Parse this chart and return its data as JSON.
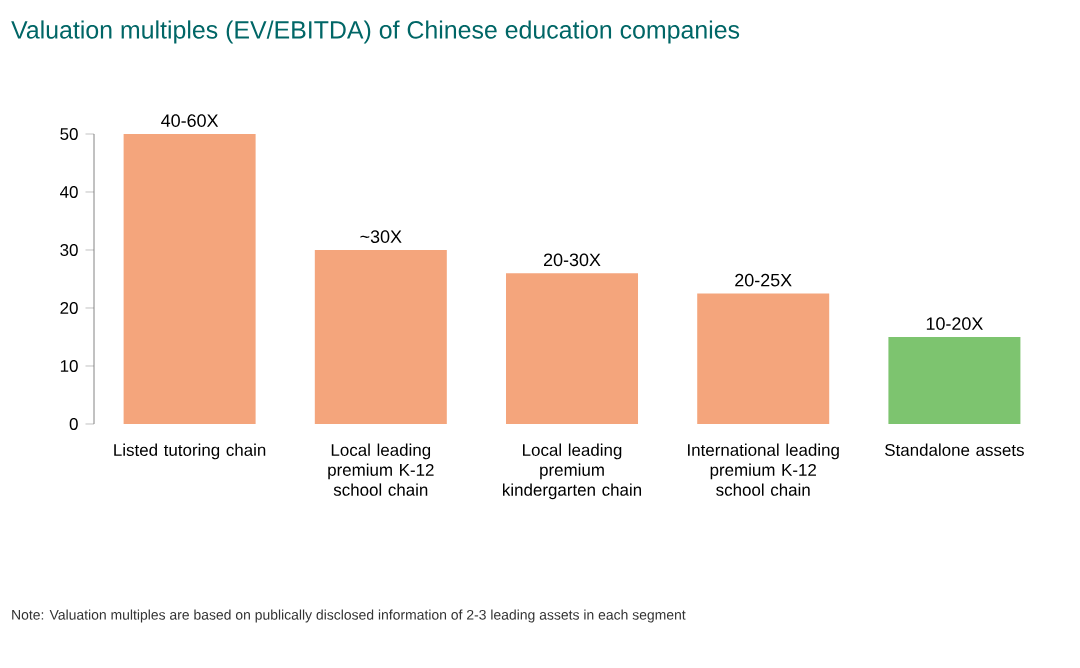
{
  "chart_data": {
    "type": "bar",
    "title": "Valuation multiples (EV/EBITDA) of Chinese education companies",
    "categories": [
      "Listed tutoring chain",
      "Local leading premium K-12 school chain",
      "Local leading premium kindergarten chain",
      "International leading premium K-12 school chain",
      "Standalone assets"
    ],
    "values": [
      50,
      30,
      26,
      22.5,
      15
    ],
    "colors": [
      "#f4a57c",
      "#f4a57c",
      "#f4a57c",
      "#f4a57c",
      "#7dc46f"
    ],
    "value_labels": [
      "40-60X",
      "~30X",
      "20-30X",
      "20-25X",
      "10-20X"
    ],
    "ylim": [
      0,
      50
    ],
    "yticks": [
      0,
      10,
      20,
      30,
      40,
      50
    ],
    "grid": false,
    "annotations": [
      "Note: Valuation multiples are based on publically disclosed information of 2-3 leading assets in each segment"
    ]
  }
}
